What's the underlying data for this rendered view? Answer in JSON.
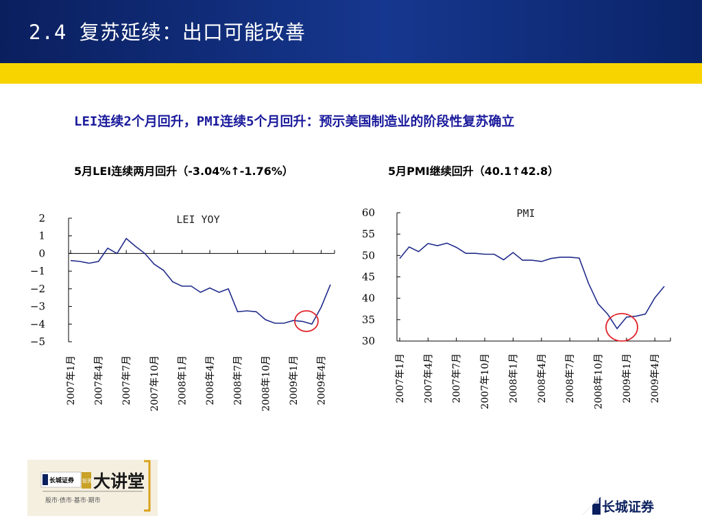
{
  "header": {
    "title": "2.4  复苏延续：出口可能改善"
  },
  "subtitle": "LEI连续2个月回升，PMI连续5个月回升：预示美国制造业的阶段性复苏确立",
  "captions": {
    "left": "5月LEI连续两月回升（-3.04%↑-1.76%）",
    "right": "5月PMI继续回升（40.1↑42.8）"
  },
  "chart_data": [
    {
      "type": "line",
      "title": "LEI YOY",
      "x_ticks": [
        "2007年1月",
        "2007年4月",
        "2007年7月",
        "2007年10月",
        "2008年1月",
        "2008年4月",
        "2008年7月",
        "2008年10月",
        "2009年1月",
        "2009年4月"
      ],
      "x": [
        "2007-01",
        "2007-02",
        "2007-03",
        "2007-04",
        "2007-05",
        "2007-06",
        "2007-07",
        "2007-08",
        "2007-09",
        "2007-10",
        "2007-11",
        "2007-12",
        "2008-01",
        "2008-02",
        "2008-03",
        "2008-04",
        "2008-05",
        "2008-06",
        "2008-07",
        "2008-08",
        "2008-09",
        "2008-10",
        "2008-11",
        "2008-12",
        "2009-01",
        "2009-02",
        "2009-03",
        "2009-04",
        "2009-05"
      ],
      "series": [
        {
          "values": [
            -0.4,
            -0.45,
            -0.55,
            -0.45,
            0.3,
            0.0,
            0.85,
            0.4,
            0.0,
            -0.6,
            -0.95,
            -1.6,
            -1.85,
            -1.85,
            -2.2,
            -1.95,
            -2.2,
            -2.0,
            -3.3,
            -3.25,
            -3.3,
            -3.75,
            -3.95,
            -3.95,
            -3.8,
            -3.85,
            -4.0,
            -3.04,
            -1.76
          ],
          "color": "#1f2a8a"
        }
      ],
      "ylim": [
        -5,
        2
      ],
      "y_ticks": [
        "2",
        "1",
        "0",
        "−1",
        "−2",
        "−3",
        "−4",
        "−5"
      ],
      "annotation": "red circle around 2009-03 trough",
      "grid": false
    },
    {
      "type": "line",
      "title": "PMI",
      "x_ticks": [
        "2007年1月",
        "2007年4月",
        "2007年7月",
        "2007年10月",
        "2008年1月",
        "2008年4月",
        "2008年7月",
        "2008年10月",
        "2009年1月",
        "2009年4月"
      ],
      "x": [
        "2007-01",
        "2007-02",
        "2007-03",
        "2007-04",
        "2007-05",
        "2007-06",
        "2007-07",
        "2007-08",
        "2007-09",
        "2007-10",
        "2007-11",
        "2007-12",
        "2008-01",
        "2008-02",
        "2008-03",
        "2008-04",
        "2008-05",
        "2008-06",
        "2008-07",
        "2008-08",
        "2008-09",
        "2008-10",
        "2008-11",
        "2008-12",
        "2009-01",
        "2009-02",
        "2009-03",
        "2009-04",
        "2009-05"
      ],
      "series": [
        {
          "values": [
            49.3,
            52.0,
            50.9,
            52.8,
            52.3,
            52.9,
            51.9,
            50.5,
            50.5,
            50.3,
            50.3,
            49.0,
            50.7,
            48.9,
            48.9,
            48.6,
            49.3,
            49.6,
            49.6,
            49.4,
            43.4,
            38.7,
            36.3,
            32.9,
            35.6,
            35.8,
            36.3,
            40.1,
            42.8
          ],
          "color": "#1f2a8a"
        }
      ],
      "ylim": [
        30,
        60
      ],
      "y_ticks": [
        "60",
        "55",
        "50",
        "45",
        "40",
        "35",
        "30"
      ],
      "annotation": "red circle around 2008-12 trough",
      "grid": false
    }
  ],
  "footer": {
    "left_logo_text": "长城证券",
    "left_logo_big": "大讲堂",
    "left_logo_sub": "股市·债市·基市·期市",
    "left_logo_badge": "投资",
    "right_brand": "长城证券"
  },
  "colors": {
    "header": "#0f2c7a",
    "band": "#f7d300",
    "subtitle": "#1a1a9c",
    "line": "#1f2a8a",
    "circle": "#e0232a"
  }
}
